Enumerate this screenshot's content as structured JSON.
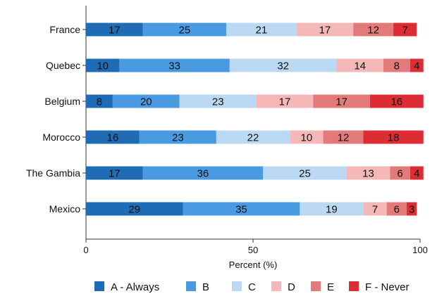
{
  "chart_data": {
    "type": "bar",
    "orientation": "horizontal",
    "stacked": true,
    "categories": [
      "France",
      "Quebec",
      "Belgium",
      "Morocco",
      "The Gambia",
      "Mexico"
    ],
    "series": [
      {
        "name": "A - Always",
        "color": "#1f6cb5",
        "values": [
          17,
          10,
          8,
          16,
          17,
          29
        ]
      },
      {
        "name": "B",
        "color": "#4a9ae2",
        "values": [
          25,
          33,
          20,
          23,
          36,
          35
        ]
      },
      {
        "name": "C",
        "color": "#bcd9f3",
        "values": [
          21,
          32,
          23,
          22,
          25,
          19
        ]
      },
      {
        "name": "D",
        "color": "#f4b8b8",
        "values": [
          17,
          14,
          17,
          10,
          13,
          7
        ]
      },
      {
        "name": "E",
        "color": "#e37a7a",
        "values": [
          12,
          8,
          17,
          12,
          6,
          6
        ]
      },
      {
        "name": "F - Never",
        "color": "#dc2d34",
        "values": [
          7,
          4,
          16,
          18,
          4,
          3
        ]
      }
    ],
    "xlabel": "Percent (%)",
    "ylabel": "",
    "xlim": [
      0,
      100
    ],
    "xticks": [
      0,
      50,
      100
    ],
    "grid": false,
    "legend_position": "bottom"
  }
}
